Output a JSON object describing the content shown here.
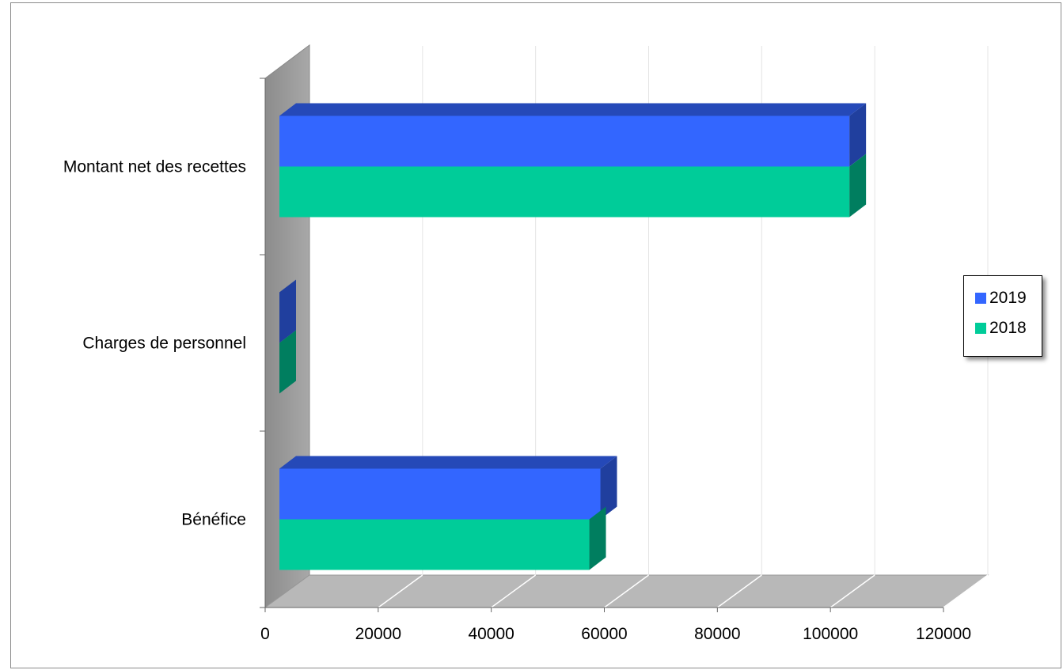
{
  "chart_data": {
    "type": "bar",
    "orientation": "horizontal",
    "three_d": true,
    "categories": [
      "Montant net des recettes",
      "Charges de personnel",
      "Bénéfice"
    ],
    "series": [
      {
        "name": "2019",
        "color": "#3366FF",
        "values": [
          103000,
          0,
          58000
        ]
      },
      {
        "name": "2018",
        "color": "#00CC99",
        "values": [
          103000,
          0,
          56000
        ]
      }
    ],
    "xlim": [
      0,
      120000
    ],
    "xticks": [
      "0",
      "20000",
      "40000",
      "60000",
      "80000",
      "100000",
      "120000"
    ],
    "legend": "right",
    "grid": true
  }
}
